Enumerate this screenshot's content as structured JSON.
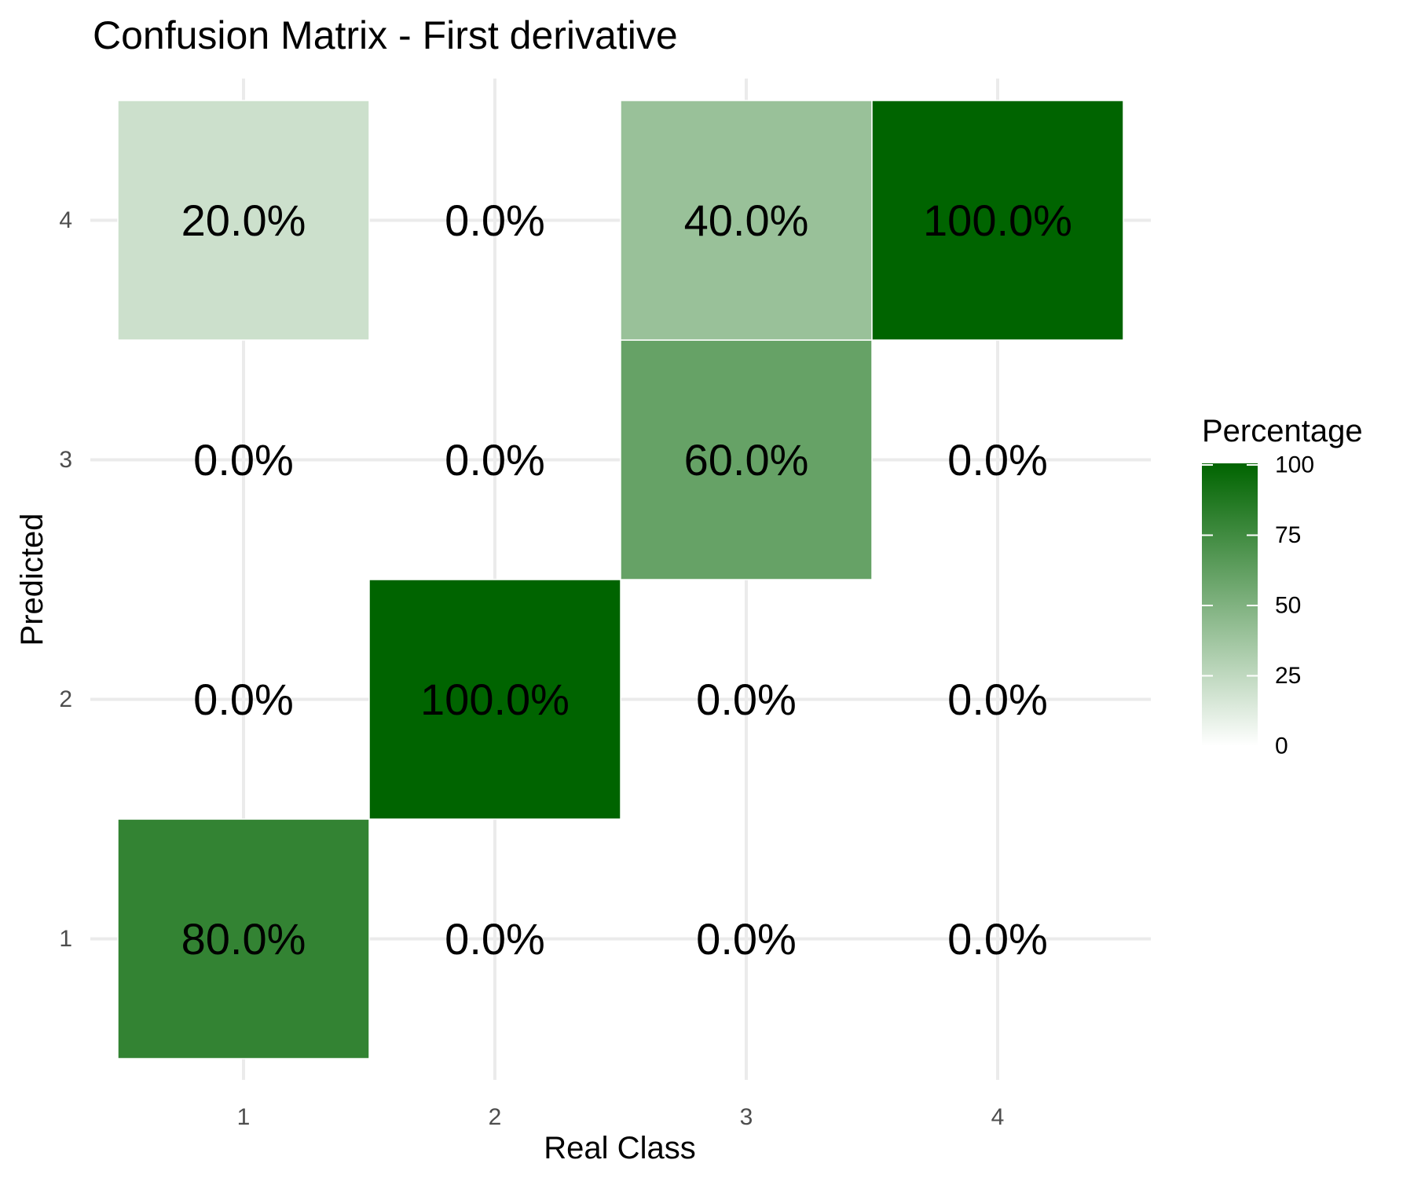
{
  "chart_data": {
    "type": "heatmap",
    "title": "Confusion Matrix - First derivative",
    "xlabel": "Real Class",
    "ylabel": "Predicted",
    "x_categories": [
      "1",
      "2",
      "3",
      "4"
    ],
    "y_categories": [
      "1",
      "2",
      "3",
      "4"
    ],
    "cells": [
      {
        "real": "1",
        "predicted": "1",
        "value": 80.0,
        "label": "80.0%"
      },
      {
        "real": "1",
        "predicted": "2",
        "value": 0.0,
        "label": "0.0%"
      },
      {
        "real": "1",
        "predicted": "3",
        "value": 0.0,
        "label": "0.0%"
      },
      {
        "real": "1",
        "predicted": "4",
        "value": 20.0,
        "label": "20.0%"
      },
      {
        "real": "2",
        "predicted": "1",
        "value": 0.0,
        "label": "0.0%"
      },
      {
        "real": "2",
        "predicted": "2",
        "value": 100.0,
        "label": "100.0%"
      },
      {
        "real": "2",
        "predicted": "3",
        "value": 0.0,
        "label": "0.0%"
      },
      {
        "real": "2",
        "predicted": "4",
        "value": 0.0,
        "label": "0.0%"
      },
      {
        "real": "3",
        "predicted": "1",
        "value": 0.0,
        "label": "0.0%"
      },
      {
        "real": "3",
        "predicted": "2",
        "value": 0.0,
        "label": "0.0%"
      },
      {
        "real": "3",
        "predicted": "3",
        "value": 60.0,
        "label": "60.0%"
      },
      {
        "real": "3",
        "predicted": "4",
        "value": 40.0,
        "label": "40.0%"
      },
      {
        "real": "4",
        "predicted": "1",
        "value": 0.0,
        "label": "0.0%"
      },
      {
        "real": "4",
        "predicted": "2",
        "value": 0.0,
        "label": "0.0%"
      },
      {
        "real": "4",
        "predicted": "3",
        "value": 0.0,
        "label": "0.0%"
      },
      {
        "real": "4",
        "predicted": "4",
        "value": 100.0,
        "label": "100.0%"
      }
    ],
    "legend": {
      "title": "Percentage",
      "ticks": [
        0,
        25,
        50,
        75,
        100
      ],
      "range": [
        0,
        100
      ],
      "low_color": "#ffffff",
      "high_color": "#006400",
      "position": "right"
    },
    "grid": true
  }
}
